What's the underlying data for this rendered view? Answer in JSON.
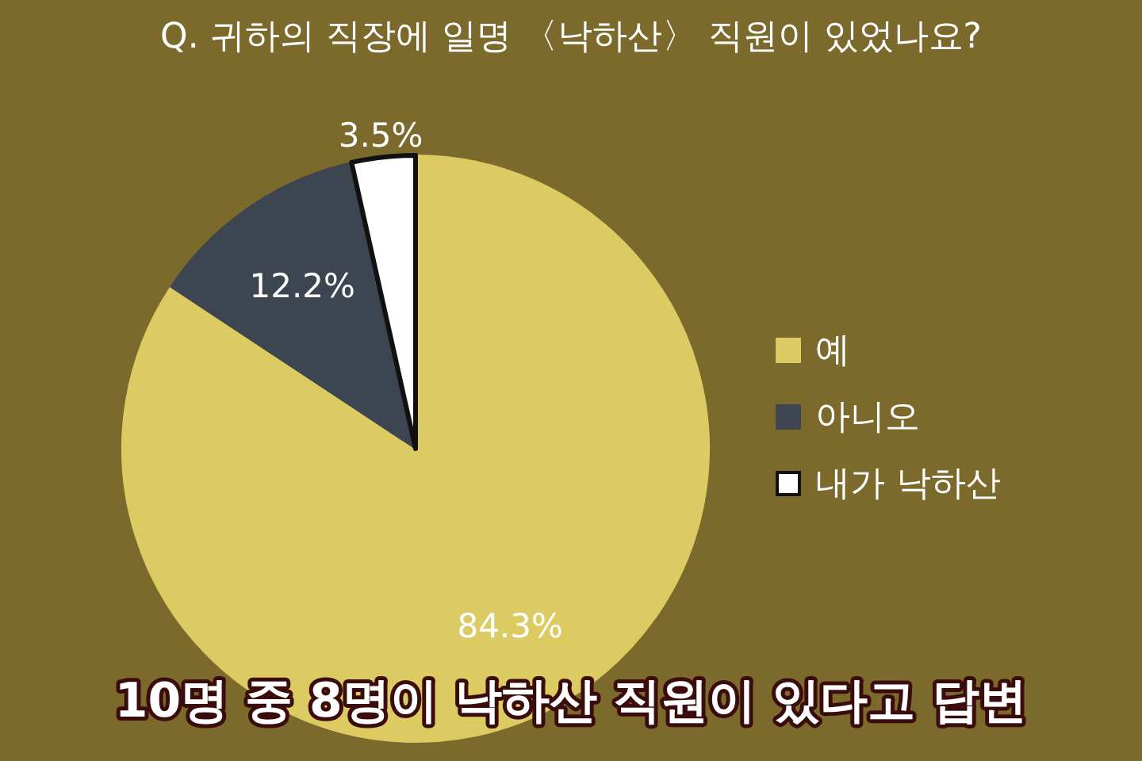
{
  "chart_data": {
    "type": "pie",
    "title": "Q. 귀하의 직장에 일명 〈낙하산〉 직원이 있었나요?",
    "categories": [
      "예",
      "아니오",
      "내가 낙하산"
    ],
    "values": [
      84.3,
      12.2,
      3.5
    ],
    "colors": [
      "#dccb62",
      "#3d4550",
      "#ffffff"
    ],
    "value_labels": [
      "84.3%",
      "12.2%",
      "3.5%"
    ],
    "legend": "right",
    "annotations": [
      "10명 중 8명이 낙하산 직원이 있다고 답변"
    ]
  }
}
